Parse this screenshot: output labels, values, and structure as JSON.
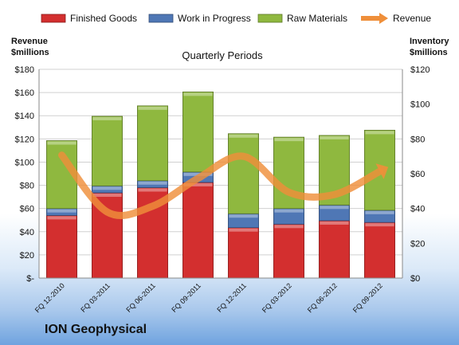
{
  "chart_data": {
    "type": "bar",
    "stacked": true,
    "title": "Quarterly Periods",
    "company": "ION Geophysical",
    "categories": [
      "FQ 12-2010",
      "FQ 03-2011",
      "FQ 06-2011",
      "FQ 09-2011",
      "FQ 12-2011",
      "FQ 03-2012",
      "FQ 06-2012",
      "FQ 09-2012"
    ],
    "series": [
      {
        "name": "Finished Goods",
        "color": "#d32f2f",
        "axis": "right",
        "values": [
          36,
          49,
          52,
          55,
          29,
          31,
          33,
          32
        ]
      },
      {
        "name": "Work in Progress",
        "color": "#4f77b5",
        "axis": "right",
        "values": [
          4,
          4,
          4,
          6,
          8,
          9,
          9,
          7
        ]
      },
      {
        "name": "Raw Materials",
        "color": "#8fb83f",
        "axis": "right",
        "values": [
          39,
          40,
          43,
          46,
          46,
          41,
          40,
          46
        ]
      }
    ],
    "line_series": {
      "name": "Revenue",
      "color": "#ef8f3a",
      "axis": "left",
      "values": [
        106,
        57,
        62,
        86,
        105,
        74,
        72,
        92
      ]
    },
    "left_axis": {
      "label_line1": "Revenue",
      "label_line2": "$millions",
      "ylim": [
        0,
        180
      ],
      "ticks": [
        "$-",
        "$20",
        "$40",
        "$60",
        "$80",
        "$100",
        "$120",
        "$140",
        "$160",
        "$180"
      ]
    },
    "right_axis": {
      "label_line1": "Inventory",
      "label_line2": "$millions",
      "ylim": [
        0,
        120
      ],
      "ticks": [
        "$0",
        "$20",
        "$40",
        "$60",
        "$80",
        "$100",
        "$120"
      ]
    },
    "legend_position": "top",
    "grid": true
  }
}
